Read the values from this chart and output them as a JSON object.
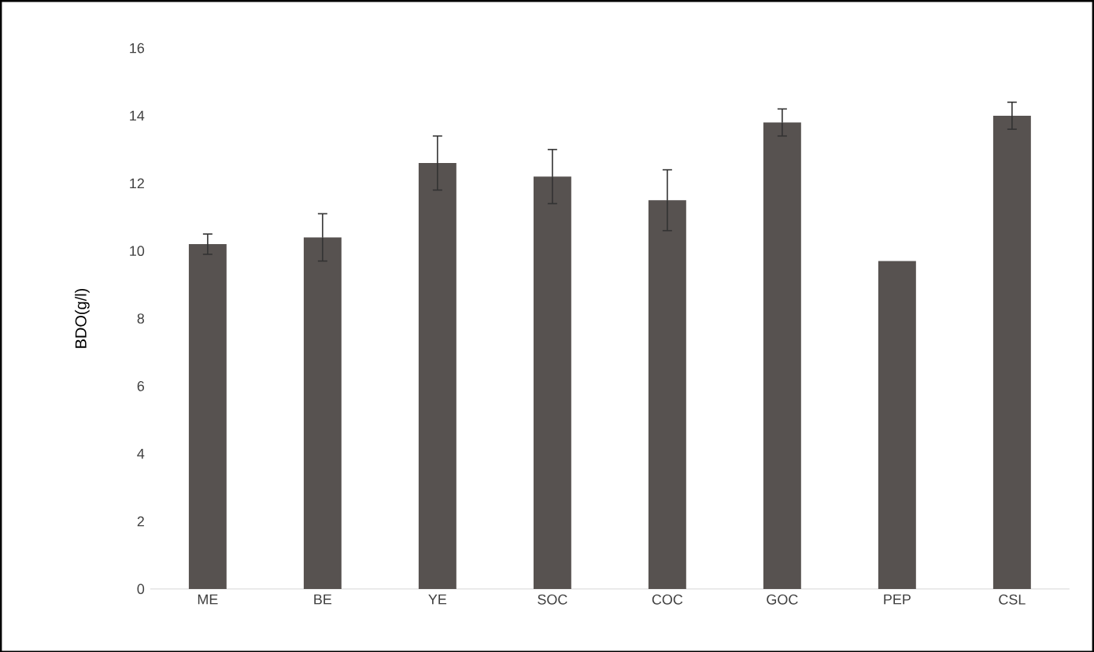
{
  "chart_data": {
    "type": "bar",
    "ylabel": "BDO(g/l)",
    "categories": [
      "ME",
      "BE",
      "YE",
      "SOC",
      "COC",
      "GOC",
      "PEP",
      "CSL"
    ],
    "values": [
      10.2,
      10.4,
      12.6,
      12.2,
      11.5,
      13.8,
      9.7,
      14.0
    ],
    "errors": [
      0.3,
      0.7,
      0.8,
      0.8,
      0.9,
      0.4,
      null,
      0.4
    ],
    "color": "#575250",
    "ylim": [
      0,
      16
    ],
    "yticks": [
      0,
      2,
      4,
      6,
      8,
      10,
      12,
      14,
      16
    ],
    "grid": false
  }
}
